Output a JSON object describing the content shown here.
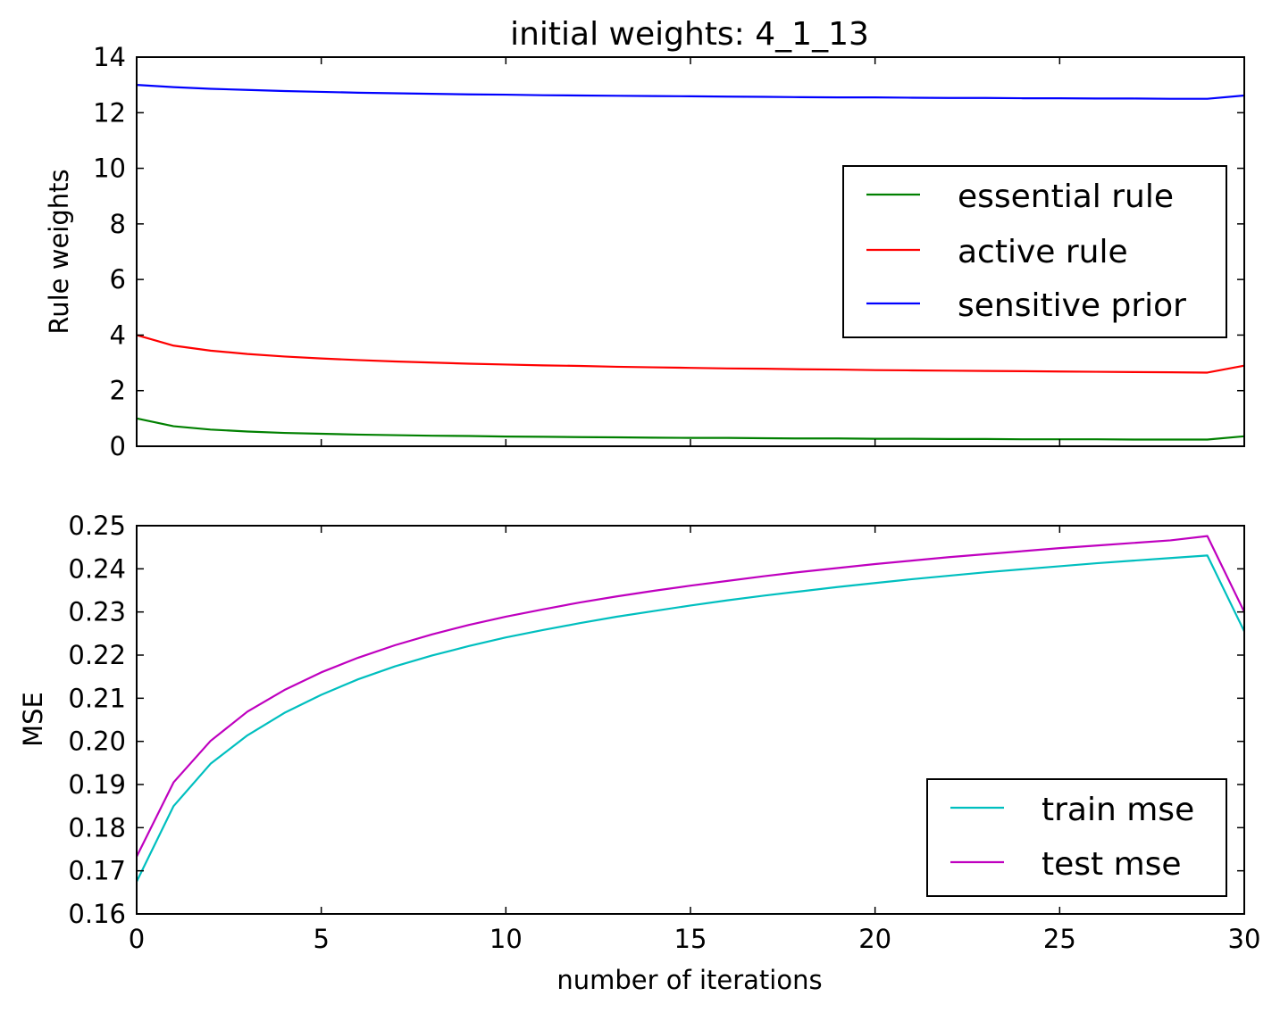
{
  "chart_data": [
    {
      "type": "line",
      "title": "initial weights: 4_1_13",
      "xlabel": "",
      "ylabel": "Rule weights",
      "xlim": [
        0,
        30
      ],
      "ylim": [
        0,
        14
      ],
      "x_ticks": [
        0,
        5,
        10,
        15,
        20,
        25,
        30
      ],
      "y_ticks": [
        0,
        2,
        4,
        6,
        8,
        10,
        12,
        14
      ],
      "y_tick_labels": [
        "0",
        "2",
        "4",
        "6",
        "8",
        "10",
        "12",
        "14"
      ],
      "x_tick_labels_visible": false,
      "grid": false,
      "legend_position": "center-right",
      "x": [
        0,
        1,
        2,
        3,
        4,
        5,
        6,
        7,
        8,
        9,
        10,
        11,
        12,
        13,
        14,
        15,
        16,
        17,
        18,
        19,
        20,
        21,
        22,
        23,
        24,
        25,
        26,
        27,
        28,
        29,
        30
      ],
      "series": [
        {
          "name": "essential rule",
          "color": "#008000",
          "values": [
            1.0,
            0.72,
            0.6,
            0.53,
            0.48,
            0.45,
            0.42,
            0.4,
            0.38,
            0.37,
            0.35,
            0.34,
            0.33,
            0.32,
            0.31,
            0.3,
            0.3,
            0.29,
            0.28,
            0.28,
            0.27,
            0.27,
            0.26,
            0.26,
            0.25,
            0.25,
            0.25,
            0.24,
            0.24,
            0.24,
            0.36
          ]
        },
        {
          "name": "active rule",
          "color": "#ff0000",
          "values": [
            4.0,
            3.62,
            3.44,
            3.32,
            3.23,
            3.16,
            3.1,
            3.05,
            3.01,
            2.97,
            2.94,
            2.91,
            2.89,
            2.86,
            2.84,
            2.82,
            2.8,
            2.79,
            2.77,
            2.76,
            2.74,
            2.73,
            2.72,
            2.71,
            2.7,
            2.69,
            2.68,
            2.67,
            2.66,
            2.65,
            2.9
          ]
        },
        {
          "name": "sensitive prior",
          "color": "#0000ff",
          "values": [
            13.0,
            12.92,
            12.86,
            12.82,
            12.78,
            12.75,
            12.72,
            12.7,
            12.68,
            12.66,
            12.65,
            12.63,
            12.62,
            12.61,
            12.6,
            12.59,
            12.58,
            12.57,
            12.56,
            12.55,
            12.55,
            12.54,
            12.53,
            12.53,
            12.52,
            12.52,
            12.51,
            12.51,
            12.5,
            12.5,
            12.62
          ]
        }
      ]
    },
    {
      "type": "line",
      "title": "",
      "xlabel": "number of iterations",
      "ylabel": "MSE",
      "xlim": [
        0,
        30
      ],
      "ylim": [
        0.16,
        0.25
      ],
      "x_ticks": [
        0,
        5,
        10,
        15,
        20,
        25,
        30
      ],
      "x_tick_labels": [
        "0",
        "5",
        "10",
        "15",
        "20",
        "25",
        "30"
      ],
      "y_ticks": [
        0.16,
        0.17,
        0.18,
        0.19,
        0.2,
        0.21,
        0.22,
        0.23,
        0.24,
        0.25
      ],
      "y_tick_labels": [
        "0.16",
        "0.17",
        "0.18",
        "0.19",
        "0.20",
        "0.21",
        "0.22",
        "0.23",
        "0.24",
        "0.25"
      ],
      "grid": false,
      "legend_position": "lower-right",
      "x": [
        0,
        1,
        2,
        3,
        4,
        5,
        6,
        7,
        8,
        9,
        10,
        11,
        12,
        13,
        14,
        15,
        16,
        17,
        18,
        19,
        20,
        21,
        22,
        23,
        24,
        25,
        26,
        27,
        28,
        29,
        30
      ],
      "series": [
        {
          "name": "train mse",
          "color": "#00bfbf",
          "values": [
            0.1675,
            0.185,
            0.1948,
            0.2014,
            0.2066,
            0.2108,
            0.2144,
            0.2174,
            0.2199,
            0.2221,
            0.2241,
            0.2258,
            0.2274,
            0.2289,
            0.2302,
            0.2315,
            0.2327,
            0.2338,
            0.2348,
            0.2358,
            0.2367,
            0.2376,
            0.2384,
            0.2392,
            0.2399,
            0.2406,
            0.2413,
            0.2419,
            0.2425,
            0.2431,
            0.2255
          ]
        },
        {
          "name": "test mse",
          "color": "#bf00bf",
          "values": [
            0.1733,
            0.1905,
            0.2001,
            0.2069,
            0.2119,
            0.216,
            0.2194,
            0.2223,
            0.2248,
            0.227,
            0.2289,
            0.2306,
            0.2322,
            0.2336,
            0.2349,
            0.2361,
            0.2372,
            0.2383,
            0.2393,
            0.2402,
            0.2411,
            0.2419,
            0.2427,
            0.2434,
            0.2441,
            0.2448,
            0.2454,
            0.246,
            0.2466,
            0.2476,
            0.23
          ]
        }
      ]
    }
  ]
}
